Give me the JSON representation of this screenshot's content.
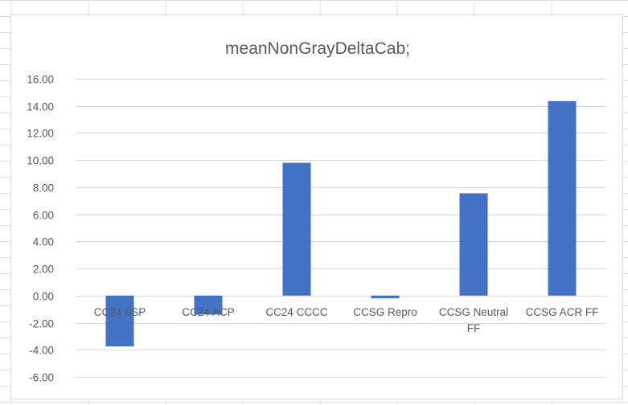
{
  "colors": {
    "bar": "#4472c4",
    "gridline": "#d9d9d9",
    "axis_text": "#595959",
    "sheet_grid": "#e1e1e1"
  },
  "chart_data": {
    "type": "bar",
    "title": "meanNonGrayDeltaCab;",
    "xlabel": "",
    "ylabel": "",
    "categories": [
      "CC24 ASP",
      "CC24 ACP",
      "CC24 CCCC",
      "CCSG Repro",
      "CCSG Neutral FF",
      "CCSG ACR FF"
    ],
    "values": [
      -3.75,
      -1.4,
      9.8,
      -0.2,
      7.55,
      14.35
    ],
    "ylim": [
      -6,
      16
    ],
    "yticks": [
      "16.00",
      "14.00",
      "12.00",
      "10.00",
      "8.00",
      "6.00",
      "4.00",
      "2.00",
      "0.00",
      "-2.00",
      "-4.00",
      "-6.00"
    ],
    "grid": true,
    "legend": "none"
  }
}
